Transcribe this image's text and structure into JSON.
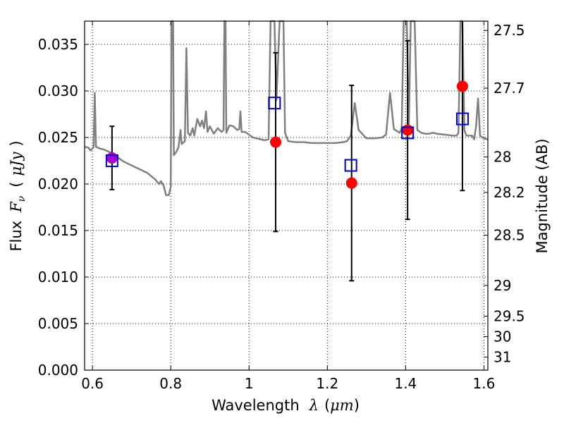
{
  "chart_data": {
    "type": "scatter",
    "title": "",
    "xlabel": {
      "prefix": "Wavelength",
      "symbol": "λ",
      "unit_open": "(",
      "unit": "μm",
      "unit_close": ")"
    },
    "ylabel": {
      "prefix": "Flux",
      "symbol": "F",
      "subscript": "ν",
      "unit_open": "(",
      "unit": "μJy",
      "unit_close": ")"
    },
    "y2label": "Magnitude (AB)",
    "xlim": [
      0.58,
      1.61
    ],
    "ylim": [
      0.0,
      0.0375
    ],
    "grid": true,
    "x_ticks": [
      {
        "value": 0.6,
        "label": "0.6"
      },
      {
        "value": 0.8,
        "label": "0.8"
      },
      {
        "value": 1.0,
        "label": "1"
      },
      {
        "value": 1.2,
        "label": "1.2"
      },
      {
        "value": 1.4,
        "label": "1.4"
      },
      {
        "value": 1.6,
        "label": "1.6"
      }
    ],
    "y_ticks": [
      {
        "value": 0.0,
        "label": "0.000"
      },
      {
        "value": 0.005,
        "label": "0.005"
      },
      {
        "value": 0.01,
        "label": "0.010"
      },
      {
        "value": 0.015,
        "label": "0.015"
      },
      {
        "value": 0.02,
        "label": "0.020"
      },
      {
        "value": 0.025,
        "label": "0.025"
      },
      {
        "value": 0.03,
        "label": "0.030"
      },
      {
        "value": 0.035,
        "label": "0.035"
      }
    ],
    "y2_ticks": [
      {
        "label": "27.5",
        "flux": 0.0365
      },
      {
        "label": "27.7",
        "flux": 0.0303
      },
      {
        "label": "28",
        "flux": 0.0229
      },
      {
        "label": "28.2",
        "flux": 0.0191
      },
      {
        "label": "28.5",
        "flux": 0.0145
      },
      {
        "label": "29",
        "flux": 0.0091
      },
      {
        "label": "29.5",
        "flux": 0.0058
      },
      {
        "label": "30",
        "flux": 0.0036
      },
      {
        "label": "31",
        "flux": 0.0014
      }
    ],
    "model_spectrum": {
      "name": "",
      "color": "#808080",
      "points": [
        [
          0.58,
          0.024
        ],
        [
          0.59,
          0.0239
        ],
        [
          0.595,
          0.0236
        ],
        [
          0.6,
          0.0238
        ],
        [
          0.603,
          0.024
        ],
        [
          0.606,
          0.0298
        ],
        [
          0.609,
          0.024
        ],
        [
          0.62,
          0.0238
        ],
        [
          0.63,
          0.0237
        ],
        [
          0.64,
          0.0235
        ],
        [
          0.65,
          0.0233
        ],
        [
          0.66,
          0.023
        ],
        [
          0.67,
          0.0227
        ],
        [
          0.68,
          0.0224
        ],
        [
          0.7,
          0.022
        ],
        [
          0.72,
          0.0216
        ],
        [
          0.74,
          0.0212
        ],
        [
          0.76,
          0.0205
        ],
        [
          0.77,
          0.02
        ],
        [
          0.775,
          0.0203
        ],
        [
          0.782,
          0.0198
        ],
        [
          0.788,
          0.0188
        ],
        [
          0.795,
          0.0188
        ],
        [
          0.8,
          0.0197
        ],
        [
          0.802,
          0.0375
        ],
        [
          0.806,
          0.0375
        ],
        [
          0.808,
          0.0231
        ],
        [
          0.815,
          0.0235
        ],
        [
          0.82,
          0.024
        ],
        [
          0.825,
          0.0258
        ],
        [
          0.828,
          0.0243
        ],
        [
          0.836,
          0.0246
        ],
        [
          0.84,
          0.0346
        ],
        [
          0.844,
          0.0255
        ],
        [
          0.85,
          0.0252
        ],
        [
          0.856,
          0.026
        ],
        [
          0.86,
          0.0252
        ],
        [
          0.868,
          0.027
        ],
        [
          0.875,
          0.0262
        ],
        [
          0.88,
          0.0268
        ],
        [
          0.885,
          0.026
        ],
        [
          0.89,
          0.0278
        ],
        [
          0.894,
          0.0256
        ],
        [
          0.9,
          0.0262
        ],
        [
          0.91,
          0.0254
        ],
        [
          0.92,
          0.026
        ],
        [
          0.93,
          0.0256
        ],
        [
          0.935,
          0.0258
        ],
        [
          0.937,
          0.0375
        ],
        [
          0.94,
          0.0375
        ],
        [
          0.942,
          0.0255
        ],
        [
          0.95,
          0.0263
        ],
        [
          0.96,
          0.0262
        ],
        [
          0.97,
          0.0258
        ],
        [
          0.975,
          0.0259
        ],
        [
          0.978,
          0.0278
        ],
        [
          0.981,
          0.0256
        ],
        [
          0.99,
          0.0256
        ],
        [
          1.0,
          0.0253
        ],
        [
          1.01,
          0.025
        ],
        [
          1.02,
          0.0249
        ],
        [
          1.03,
          0.0248
        ],
        [
          1.04,
          0.0247
        ],
        [
          1.05,
          0.0248
        ],
        [
          1.055,
          0.0375
        ],
        [
          1.065,
          0.0375
        ],
        [
          1.07,
          0.029
        ],
        [
          1.078,
          0.0375
        ],
        [
          1.088,
          0.0375
        ],
        [
          1.092,
          0.0255
        ],
        [
          1.1,
          0.0246
        ],
        [
          1.12,
          0.0245
        ],
        [
          1.14,
          0.0245
        ],
        [
          1.16,
          0.0244
        ],
        [
          1.18,
          0.0244
        ],
        [
          1.2,
          0.0244
        ],
        [
          1.22,
          0.0244
        ],
        [
          1.24,
          0.0245
        ],
        [
          1.25,
          0.0246
        ],
        [
          1.26,
          0.0252
        ],
        [
          1.27,
          0.0287
        ],
        [
          1.28,
          0.0258
        ],
        [
          1.3,
          0.0249
        ],
        [
          1.32,
          0.0249
        ],
        [
          1.34,
          0.025
        ],
        [
          1.35,
          0.0253
        ],
        [
          1.36,
          0.0298
        ],
        [
          1.37,
          0.0259
        ],
        [
          1.385,
          0.0255
        ],
        [
          1.39,
          0.026
        ],
        [
          1.395,
          0.0375
        ],
        [
          1.403,
          0.0375
        ],
        [
          1.408,
          0.0258
        ],
        [
          1.413,
          0.0375
        ],
        [
          1.423,
          0.0375
        ],
        [
          1.43,
          0.0258
        ],
        [
          1.44,
          0.0255
        ],
        [
          1.45,
          0.0254
        ],
        [
          1.46,
          0.0254
        ],
        [
          1.47,
          0.0255
        ],
        [
          1.48,
          0.0254
        ],
        [
          1.5,
          0.0253
        ],
        [
          1.52,
          0.0252
        ],
        [
          1.53,
          0.0252
        ],
        [
          1.535,
          0.0255
        ],
        [
          1.54,
          0.0375
        ],
        [
          1.545,
          0.0375
        ],
        [
          1.55,
          0.0258
        ],
        [
          1.555,
          0.0252
        ],
        [
          1.57,
          0.0252
        ],
        [
          1.575,
          0.0248
        ],
        [
          1.58,
          0.0262
        ],
        [
          1.585,
          0.0292
        ],
        [
          1.59,
          0.0252
        ],
        [
          1.6,
          0.0249
        ],
        [
          1.61,
          0.0248
        ]
      ]
    },
    "series": [
      {
        "name": "",
        "marker": "circle",
        "color": "#ff0000",
        "points": [
          {
            "x": 0.65,
            "y": 0.0228,
            "err": 0.0034
          },
          {
            "x": 1.068,
            "y": 0.0245,
            "err": 0.0096
          },
          {
            "x": 1.262,
            "y": 0.0201,
            "err": 0.0105
          },
          {
            "x": 1.405,
            "y": 0.0258,
            "err": 0.0096
          },
          {
            "x": 1.545,
            "y": 0.0305,
            "err": 0.0112
          }
        ]
      },
      {
        "name": "",
        "marker": "square-open",
        "color": "#0000cc",
        "points": [
          {
            "x": 0.65,
            "y": 0.0225
          },
          {
            "x": 1.065,
            "y": 0.0287
          },
          {
            "x": 1.26,
            "y": 0.022
          },
          {
            "x": 1.405,
            "y": 0.0255
          },
          {
            "x": 1.545,
            "y": 0.027
          }
        ]
      }
    ],
    "overlap_color": "#aa00cc"
  }
}
